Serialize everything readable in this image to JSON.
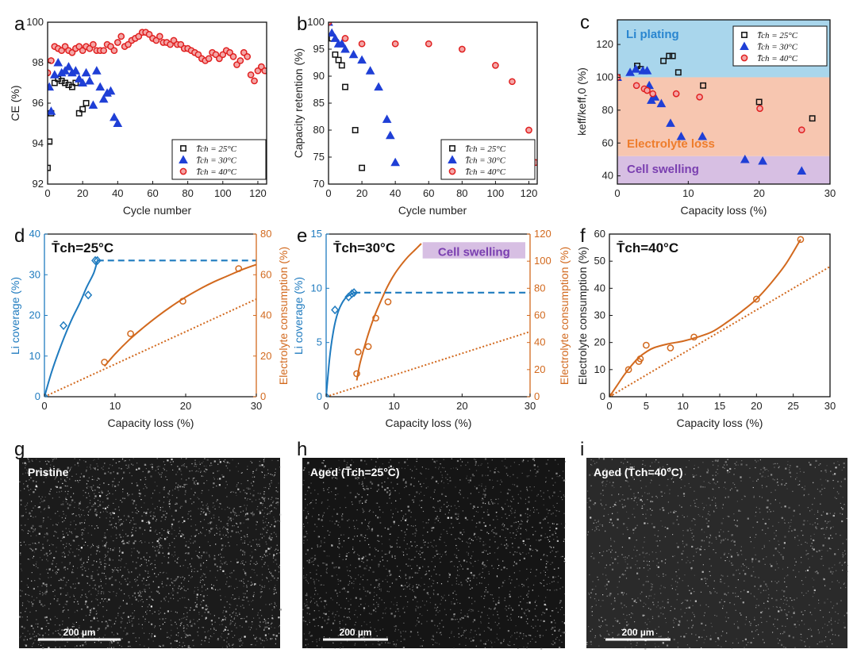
{
  "colors": {
    "black": "#111111",
    "blue": "#1f3fd6",
    "red": "#e02020",
    "teal": "#1f7bbf",
    "orange": "#d2691e",
    "plating": "#a9d6ec",
    "electrolyte": "#f7c6b0",
    "swelling": "#d7bfe3",
    "swell_text": "#7a3fb0",
    "plating_text": "#2a86d0",
    "electrolyte_text": "#ee7d2c"
  },
  "panel_labels": {
    "a": "a",
    "b": "b",
    "c": "c",
    "d": "d",
    "e": "e",
    "f": "f",
    "g": "g",
    "h": "h",
    "i": "i"
  },
  "legend": {
    "t25": "T̄ch = 25°C",
    "t30": "T̄ch = 30°C",
    "t40": "T̄ch = 40°C"
  },
  "images": {
    "g_label": "Pristine",
    "h_label": "Aged (T̄ch=25°C)",
    "i_label": "Aged (T̄ch=40°C)",
    "scale_bar": "200 µm"
  },
  "chart_data": [
    {
      "panel": "a",
      "type": "scatter",
      "xlabel": "Cycle number",
      "ylabel": "CE (%)",
      "xlim": [
        0,
        125
      ],
      "ylim": [
        92,
        100
      ],
      "xticks": [
        0,
        20,
        40,
        60,
        80,
        100,
        120
      ],
      "yticks": [
        92,
        94,
        96,
        98,
        100
      ],
      "series": [
        {
          "name": "T̄ch = 25°C",
          "marker": "square",
          "x": [
            0,
            1,
            2,
            4,
            6,
            8,
            10,
            12,
            14,
            16,
            18,
            20,
            22
          ],
          "y": [
            92.8,
            94.1,
            95.5,
            97.0,
            97.2,
            97.1,
            97.0,
            96.9,
            96.8,
            97.0,
            95.5,
            95.7,
            96.0
          ]
        },
        {
          "name": "T̄ch = 30°C",
          "marker": "triangle",
          "x": [
            1,
            2,
            4,
            6,
            8,
            10,
            12,
            14,
            16,
            18,
            20,
            22,
            24,
            26,
            28,
            30,
            32,
            34,
            36,
            38,
            40
          ],
          "y": [
            96.8,
            95.6,
            97.4,
            98.0,
            97.5,
            97.6,
            97.8,
            97.5,
            97.6,
            97.2,
            97.0,
            97.5,
            97.1,
            95.9,
            97.6,
            96.8,
            96.2,
            96.5,
            96.6,
            95.3,
            95.0
          ]
        },
        {
          "name": "T̄ch = 40°C",
          "marker": "circle",
          "x": [
            0,
            2,
            4,
            6,
            8,
            10,
            12,
            14,
            16,
            18,
            20,
            22,
            24,
            26,
            28,
            30,
            32,
            34,
            36,
            38,
            40,
            42,
            44,
            46,
            48,
            50,
            52,
            54,
            56,
            58,
            60,
            62,
            64,
            66,
            68,
            70,
            72,
            74,
            76,
            78,
            80,
            82,
            84,
            86,
            88,
            90,
            92,
            94,
            96,
            98,
            100,
            102,
            104,
            106,
            108,
            110,
            112,
            114,
            116,
            118,
            120,
            122,
            124
          ],
          "y": [
            97.5,
            98.1,
            98.8,
            98.7,
            98.6,
            98.8,
            98.6,
            98.5,
            98.7,
            98.8,
            98.6,
            98.8,
            98.7,
            98.9,
            98.6,
            98.6,
            98.6,
            98.9,
            98.8,
            98.6,
            99.0,
            99.3,
            98.8,
            98.9,
            99.1,
            99.2,
            99.3,
            99.5,
            99.5,
            99.4,
            99.2,
            99.1,
            99.3,
            99.0,
            99.0,
            98.9,
            99.1,
            98.9,
            98.9,
            98.7,
            98.7,
            98.6,
            98.5,
            98.4,
            98.2,
            98.1,
            98.2,
            98.5,
            98.4,
            98.2,
            98.4,
            98.6,
            98.5,
            98.3,
            97.9,
            98.1,
            98.5,
            98.3,
            97.4,
            97.1,
            97.6,
            97.8,
            97.6
          ]
        }
      ]
    },
    {
      "panel": "b",
      "type": "scatter",
      "xlabel": "Cycle number",
      "ylabel": "Capacity retention (%)",
      "xlim": [
        0,
        125
      ],
      "ylim": [
        70,
        100
      ],
      "xticks": [
        0,
        20,
        40,
        60,
        80,
        100,
        120
      ],
      "yticks": [
        70,
        75,
        80,
        85,
        90,
        95,
        100
      ],
      "series": [
        {
          "name": "T̄ch = 25°C",
          "marker": "square",
          "x": [
            0,
            2,
            4,
            6,
            8,
            10,
            16,
            20
          ],
          "y": [
            100,
            97,
            94,
            93,
            92,
            88,
            80,
            73
          ]
        },
        {
          "name": "T̄ch = 30°C",
          "marker": "triangle",
          "x": [
            0,
            2,
            4,
            6,
            8,
            10,
            15,
            20,
            25,
            30,
            35,
            37,
            40
          ],
          "y": [
            100,
            98,
            97,
            96,
            96,
            95,
            94,
            93,
            91,
            88,
            82,
            79,
            74
          ]
        },
        {
          "name": "T̄ch = 40°C",
          "marker": "circle",
          "x": [
            0,
            10,
            20,
            40,
            60,
            80,
            100,
            110,
            120,
            124
          ],
          "y": [
            100,
            97,
            96,
            96,
            96,
            95,
            92,
            89,
            80,
            74
          ]
        }
      ]
    },
    {
      "panel": "c",
      "type": "scatter",
      "xlabel": "Capacity loss (%)",
      "ylabel": "keff/keff,0 (%)",
      "xlim": [
        0,
        30
      ],
      "ylim": [
        35,
        135
      ],
      "xticks": [
        0,
        10,
        20,
        30
      ],
      "yticks": [
        40,
        60,
        80,
        100,
        120
      ],
      "regions": [
        {
          "name": "Li plating",
          "from": 100,
          "to": 135
        },
        {
          "name": "Electrolyte loss",
          "from": 52,
          "to": 100
        },
        {
          "name": "Cell swelling",
          "from": 35,
          "to": 52
        }
      ],
      "series": [
        {
          "name": "T̄ch = 25°C",
          "marker": "square",
          "x": [
            0,
            2.8,
            3.3,
            6.5,
            7.3,
            7.8,
            8.6,
            12.1,
            20,
            27.5
          ],
          "y": [
            100,
            107,
            105,
            110,
            113,
            113,
            103,
            95,
            85,
            75
          ]
        },
        {
          "name": "T̄ch = 30°C",
          "marker": "triangle",
          "x": [
            0,
            1.8,
            2.6,
            3.6,
            4.2,
            4.5,
            4.8,
            5.3,
            6.2,
            7.5,
            9,
            12,
            18,
            20.5,
            26
          ],
          "y": [
            100,
            103,
            105,
            104,
            104,
            95,
            86,
            88,
            84,
            72,
            64,
            64,
            50,
            49,
            43
          ]
        },
        {
          "name": "T̄ch = 40°C",
          "marker": "circle",
          "x": [
            0,
            2.7,
            3.8,
            4.2,
            5.0,
            8.3,
            11.6,
            20.1,
            26
          ],
          "y": [
            100,
            95,
            93,
            92,
            90,
            90,
            88,
            81,
            68
          ]
        }
      ]
    },
    {
      "panel": "d",
      "type": "line",
      "title": "T̄ch=25°C",
      "xlabel": "Capacity loss (%)",
      "ylabel": "Li coverage (%)",
      "ylabel_right": "Electrolyte consumption (%)",
      "xlim": [
        0,
        30
      ],
      "ylim": [
        0,
        40
      ],
      "ylim_right": [
        0,
        80
      ],
      "xticks": [
        0,
        10,
        20,
        30
      ],
      "yticks": [
        0,
        10,
        20,
        30,
        40
      ],
      "yticks_right": [
        0,
        20,
        40,
        60,
        80
      ],
      "li_points": {
        "x": [
          0,
          2.7,
          6.2,
          7.2,
          7.5
        ],
        "y": [
          0,
          17.5,
          25,
          33.5,
          33.5
        ]
      },
      "li_fit": {
        "x": [
          0,
          1,
          2,
          3,
          4,
          5,
          6,
          7,
          7.5
        ],
        "y": [
          0,
          6,
          11,
          15.5,
          19.5,
          23,
          27,
          30.5,
          33.5
        ]
      },
      "plateau": 33.5,
      "elec_points": {
        "x": [
          8.5,
          12.2,
          19.6,
          27.5
        ],
        "y": [
          17,
          31,
          47,
          63
        ]
      },
      "elec_fit": {
        "x": [
          8.5,
          10,
          12,
          14,
          16,
          18,
          20,
          22,
          24,
          26,
          28,
          30
        ],
        "y": [
          15,
          21,
          28,
          34,
          39.5,
          44.5,
          49,
          53,
          56.5,
          59.5,
          62.5,
          65
        ]
      },
      "elec_line": {
        "x": [
          0,
          30
        ],
        "y": [
          0,
          48
        ]
      }
    },
    {
      "panel": "e",
      "type": "line",
      "title": "T̄ch=30°C",
      "annotation": "Cell swelling",
      "xlabel": "Capacity loss (%)",
      "ylabel": "Li coverage (%)",
      "ylabel_right": "Electrolyte consumption (%)",
      "xlim": [
        0,
        30
      ],
      "ylim": [
        0,
        15
      ],
      "ylim_right": [
        0,
        120
      ],
      "xticks": [
        0,
        10,
        20,
        30
      ],
      "yticks": [
        0,
        5,
        10,
        15
      ],
      "yticks_right": [
        0,
        20,
        40,
        60,
        80,
        100,
        120
      ],
      "li_points": {
        "x": [
          0,
          1.3,
          3.3,
          3.8,
          4.1
        ],
        "y": [
          0,
          8.0,
          9.2,
          9.5,
          9.6
        ]
      },
      "li_fit": {
        "x": [
          0,
          0.5,
          1,
          1.5,
          2,
          2.5,
          3,
          3.5,
          4.1
        ],
        "y": [
          0,
          3.5,
          5.8,
          7.3,
          8.2,
          8.8,
          9.2,
          9.4,
          9.6
        ]
      },
      "plateau": 9.6,
      "elec_points": {
        "x": [
          4.5,
          4.7,
          6.2,
          7.3,
          9.1
        ],
        "y": [
          17,
          33,
          37,
          58,
          70
        ]
      },
      "elec_fit": {
        "x": [
          4.5,
          5,
          6,
          7,
          8,
          9,
          10,
          11,
          12,
          13,
          14
        ],
        "y": [
          12,
          25,
          43,
          58,
          70,
          81,
          90,
          97,
          103,
          108,
          113
        ]
      },
      "elec_line": {
        "x": [
          0,
          30
        ],
        "y": [
          0,
          48
        ]
      }
    },
    {
      "panel": "f",
      "type": "line",
      "title": "T̄ch=40°C",
      "xlabel": "Capacity loss (%)",
      "ylabel": "Electrolyte consumption (%)",
      "xlim": [
        0,
        30
      ],
      "ylim": [
        0,
        60
      ],
      "xticks": [
        0,
        5,
        10,
        15,
        20,
        25,
        30
      ],
      "yticks": [
        0,
        10,
        20,
        30,
        40,
        50,
        60
      ],
      "elec_points": {
        "x": [
          0,
          2.6,
          4.0,
          4.2,
          5.0,
          8.3,
          11.5,
          20.0,
          26.0
        ],
        "y": [
          0,
          10,
          13,
          14,
          19,
          18,
          22,
          36,
          58
        ]
      },
      "elec_fit": {
        "x": [
          0,
          1,
          2,
          3,
          4,
          5,
          6,
          8,
          10,
          12,
          14,
          16,
          18,
          20,
          22,
          24,
          26
        ],
        "y": [
          0,
          4,
          8,
          11.5,
          14.5,
          16.5,
          18,
          19.5,
          20.5,
          22,
          24,
          27.5,
          31.5,
          36,
          42,
          49,
          58
        ]
      },
      "elec_line": {
        "x": [
          0,
          30
        ],
        "y": [
          0,
          48
        ]
      }
    }
  ]
}
